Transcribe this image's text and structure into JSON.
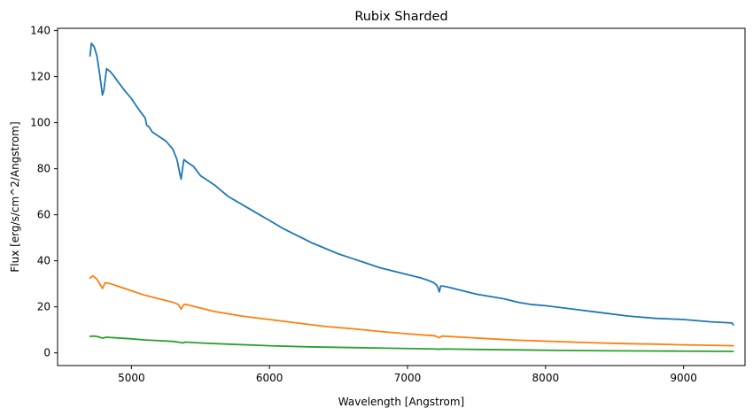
{
  "chart_data": {
    "type": "line",
    "title": "Rubix Sharded",
    "xlabel": "Wavelength [Angstrom]",
    "ylabel": "Flux [erg/s/cm^2/Angstrom]",
    "xlim": [
      4465,
      9445
    ],
    "ylim": [
      -5.5,
      141
    ],
    "xticks": [
      5000,
      6000,
      7000,
      8000,
      9000
    ],
    "yticks": [
      0,
      20,
      40,
      60,
      80,
      100,
      120,
      140
    ],
    "grid": false,
    "series": [
      {
        "color": "#1f77b4",
        "x": [
          4700,
          4710,
          4730,
          4750,
          4770,
          4790,
          4800,
          4820,
          4850,
          4870,
          4900,
          4950,
          5000,
          5050,
          5100,
          5110,
          5130,
          5150,
          5200,
          5250,
          5300,
          5330,
          5350,
          5360,
          5370,
          5380,
          5400,
          5450,
          5500,
          5550,
          5600,
          5650,
          5700,
          5800,
          5900,
          6000,
          6100,
          6200,
          6300,
          6400,
          6500,
          6600,
          6700,
          6800,
          6900,
          7000,
          7100,
          7150,
          7190,
          7210,
          7220,
          7230,
          7240,
          7260,
          7300,
          7400,
          7500,
          7600,
          7700,
          7800,
          7900,
          8000,
          8200,
          8400,
          8600,
          8800,
          9000,
          9200,
          9350,
          9360
        ],
        "values": [
          129,
          134.5,
          133,
          129,
          121,
          112,
          114,
          123.5,
          122,
          120.5,
          118,
          114,
          110.5,
          106,
          102,
          99,
          98,
          96,
          94,
          92,
          88.5,
          84,
          78,
          75.5,
          80,
          84,
          83,
          81,
          77,
          75,
          73,
          70.5,
          68,
          64.5,
          61,
          57.5,
          54,
          51,
          48,
          45.5,
          43,
          41,
          39,
          37,
          35.5,
          34,
          32.5,
          31.5,
          30.5,
          29.5,
          28.5,
          26.5,
          29,
          29,
          28.5,
          27,
          25.5,
          24.5,
          23.5,
          22,
          21,
          20.5,
          19,
          17.5,
          16,
          15,
          14.5,
          13.5,
          13,
          12.2
        ]
      },
      {
        "color": "#ff7f0e",
        "x": [
          4700,
          4720,
          4750,
          4790,
          4810,
          4850,
          4900,
          5000,
          5100,
          5200,
          5300,
          5340,
          5360,
          5380,
          5400,
          5500,
          5600,
          5800,
          6000,
          6200,
          6400,
          6600,
          6800,
          7000,
          7200,
          7230,
          7250,
          7400,
          7600,
          7800,
          8000,
          8200,
          8400,
          8600,
          8800,
          9000,
          9200,
          9360
        ],
        "values": [
          32.5,
          33.5,
          32,
          28,
          30.5,
          30,
          29,
          27,
          25,
          23.5,
          22,
          21,
          19,
          21,
          21,
          19.5,
          18,
          16,
          14.5,
          13,
          11.5,
          10.5,
          9.3,
          8.3,
          7.4,
          6.6,
          7.3,
          6.8,
          6.1,
          5.5,
          5.1,
          4.7,
          4.3,
          4,
          3.8,
          3.5,
          3.3,
          3.1
        ]
      },
      {
        "color": "#2ca02c",
        "x": [
          4700,
          4730,
          4760,
          4790,
          4820,
          4900,
          5000,
          5100,
          5200,
          5300,
          5350,
          5370,
          5390,
          5500,
          5700,
          6000,
          6300,
          6600,
          6900,
          7200,
          7230,
          7260,
          7500,
          7800,
          8100,
          8400,
          8700,
          9000,
          9360
        ],
        "values": [
          7.2,
          7.3,
          7.0,
          6.4,
          6.8,
          6.5,
          6.1,
          5.6,
          5.3,
          5.0,
          4.6,
          4.3,
          4.7,
          4.3,
          3.8,
          3.1,
          2.6,
          2.3,
          2.0,
          1.7,
          1.6,
          1.7,
          1.5,
          1.3,
          1.1,
          0.95,
          0.85,
          0.75,
          0.65
        ]
      }
    ]
  }
}
